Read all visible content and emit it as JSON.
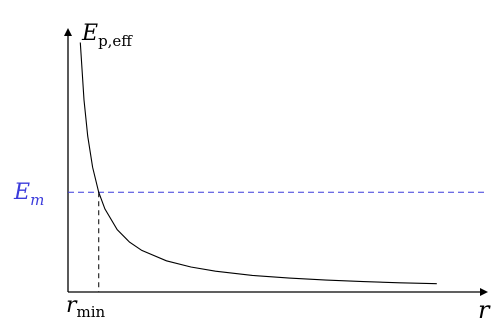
{
  "chart_data": {
    "type": "line",
    "title": "",
    "ylabel": {
      "main": "E",
      "sub": "p,eff"
    },
    "xlabel": "r",
    "series": [
      {
        "points": [
          [
            1.0,
            1.0
          ],
          [
            1.3,
            0.77
          ],
          [
            1.6,
            0.625
          ],
          [
            2.0,
            0.5
          ],
          [
            2.5,
            0.4
          ],
          [
            3.0,
            0.333
          ],
          [
            4.0,
            0.25
          ],
          [
            5.0,
            0.2
          ],
          [
            6.0,
            0.1667
          ],
          [
            8.0,
            0.125
          ],
          [
            10.0,
            0.1
          ],
          [
            12.0,
            0.0833
          ],
          [
            15.0,
            0.0667
          ],
          [
            18.0,
            0.0556
          ],
          [
            21.0,
            0.0476
          ],
          [
            24.0,
            0.0417
          ],
          [
            27.0,
            0.037
          ],
          [
            30.0,
            0.0333
          ]
        ],
        "color": "#000000"
      }
    ],
    "reference_line": {
      "label": {
        "main": "E",
        "sub": "m"
      },
      "y": 0.4,
      "color": "#3b3bdb"
    },
    "marker": {
      "label": {
        "main": "r",
        "sub": "min"
      },
      "x": 2.5
    },
    "xlim": [
      0,
      34
    ],
    "ylim": [
      0,
      1.05
    ],
    "grid": false,
    "legend": "none"
  }
}
